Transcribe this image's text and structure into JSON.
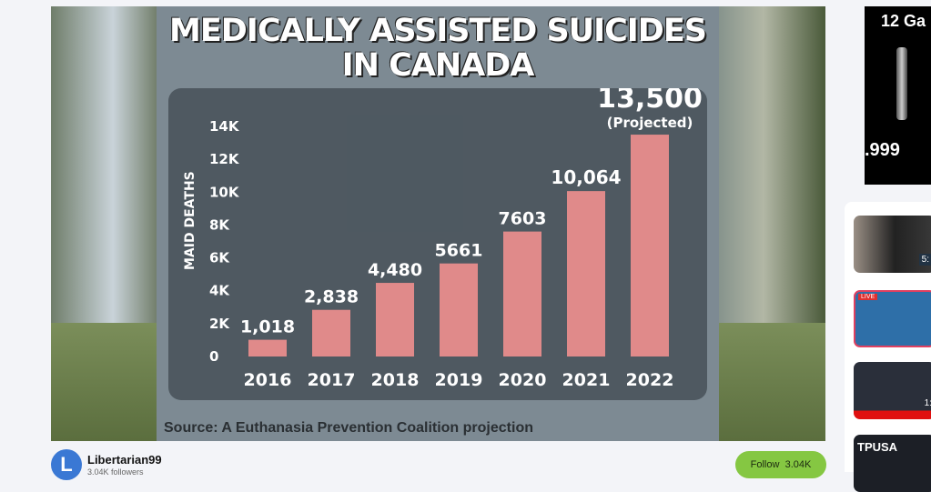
{
  "video": {
    "chart_data": {
      "type": "bar",
      "title": "MEDICALLY ASSISTED SUICIDES IN CANADA",
      "ylabel": "MAID DEATHS",
      "categories": [
        "2016",
        "2017",
        "2018",
        "2019",
        "2020",
        "2021",
        "2022"
      ],
      "values": [
        1018,
        2838,
        4480,
        5661,
        7603,
        10064,
        13500
      ],
      "value_labels": [
        "1,018",
        "2,838",
        "4,480",
        "5661",
        "7603",
        "10,064",
        "13,500"
      ],
      "annotation": "(Projected)",
      "yticks": [
        "0",
        "2K",
        "4K",
        "6K",
        "8K",
        "10K",
        "12K",
        "14K"
      ],
      "ylim": [
        0,
        14000
      ],
      "bar_color": "#e08a8a",
      "source": "Source: A Euthanasia Prevention Coalition projection"
    }
  },
  "ad": {
    "title": "12 Ga",
    "price": ".999"
  },
  "channel": {
    "initial": "L",
    "name": "Libertarian99",
    "followers": "3.04K followers",
    "follow_label": "Follow",
    "follow_count": "3.04K"
  },
  "sidebar": {
    "thumbs": [
      {
        "badge": "5:"
      },
      {
        "badge": "LIVE"
      },
      {
        "badge": "1:"
      },
      {
        "badge": "TPUSA"
      }
    ]
  }
}
